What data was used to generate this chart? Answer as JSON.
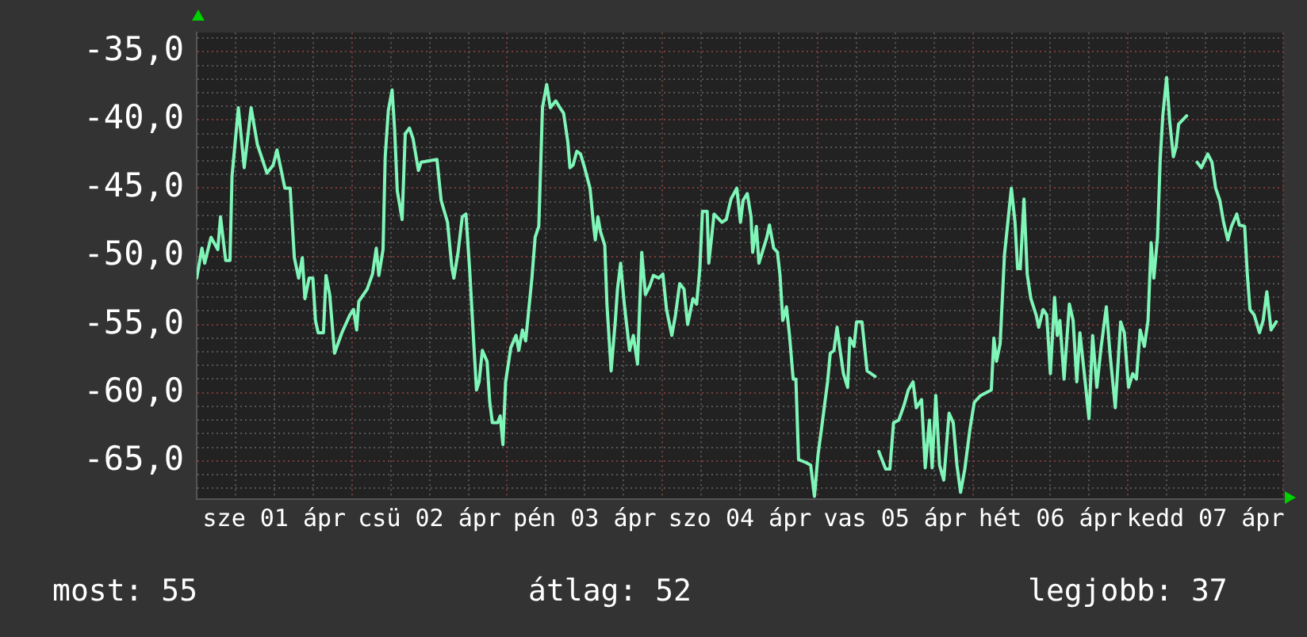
{
  "chart_data": {
    "type": "line",
    "grid": true,
    "legend": false,
    "marker": "none",
    "line_style": "solid",
    "xlim": [
      "--04-01T00:00",
      "--04-08T00:00"
    ],
    "xticks": [
      {
        "value": "--04-01T00:00",
        "label": null
      },
      {
        "value": "--04-01T06:00",
        "label": null
      },
      {
        "value": "--04-01T12:00",
        "label": "sze 01 ápr"
      },
      {
        "value": "--04-01T18:00",
        "label": null
      },
      {
        "value": "--04-02T00:00",
        "label": null
      },
      {
        "value": "--04-02T06:00",
        "label": null
      },
      {
        "value": "--04-02T12:00",
        "label": "csü 02 ápr"
      },
      {
        "value": "--04-02T18:00",
        "label": null
      },
      {
        "value": "--04-03T00:00",
        "label": null
      },
      {
        "value": "--04-03T06:00",
        "label": null
      },
      {
        "value": "--04-03T12:00",
        "label": "pén 03 ápr"
      },
      {
        "value": "--04-03T18:00",
        "label": null
      },
      {
        "value": "--04-04T00:00",
        "label": null
      },
      {
        "value": "--04-04T06:00",
        "label": null
      },
      {
        "value": "--04-04T12:00",
        "label": "szo 04 ápr"
      },
      {
        "value": "--04-04T18:00",
        "label": null
      },
      {
        "value": "--04-05T00:00",
        "label": null
      },
      {
        "value": "--04-05T06:00",
        "label": null
      },
      {
        "value": "--04-05T12:00",
        "label": "vas 05 ápr"
      },
      {
        "value": "--04-05T18:00",
        "label": null
      },
      {
        "value": "--04-06T00:00",
        "label": null
      },
      {
        "value": "--04-06T06:00",
        "label": null
      },
      {
        "value": "--04-06T12:00",
        "label": "hét 06 ápr"
      },
      {
        "value": "--04-06T18:00",
        "label": null
      },
      {
        "value": "--04-07T00:00",
        "label": null
      },
      {
        "value": "--04-07T06:00",
        "label": null
      },
      {
        "value": "--04-07T12:00",
        "label": "kedd 07 ápr"
      },
      {
        "value": "--04-07T18:00",
        "label": null
      },
      {
        "value": "--04-08T00:00",
        "label": null
      }
    ],
    "ylim": [
      -67.8,
      -33.6
    ],
    "yticks": [
      {
        "value": -67,
        "label": null
      },
      {
        "value": -66,
        "label": null
      },
      {
        "value": -65,
        "label": "-65,0"
      },
      {
        "value": -64,
        "label": null
      },
      {
        "value": -63,
        "label": null
      },
      {
        "value": -62,
        "label": null
      },
      {
        "value": -61,
        "label": null
      },
      {
        "value": -60,
        "label": "-60,0"
      },
      {
        "value": -59,
        "label": null
      },
      {
        "value": -58,
        "label": null
      },
      {
        "value": -57,
        "label": null
      },
      {
        "value": -56,
        "label": null
      },
      {
        "value": -55,
        "label": "-55,0"
      },
      {
        "value": -54,
        "label": null
      },
      {
        "value": -53,
        "label": null
      },
      {
        "value": -52,
        "label": null
      },
      {
        "value": -51,
        "label": null
      },
      {
        "value": -50,
        "label": "-50,0"
      },
      {
        "value": -49,
        "label": null
      },
      {
        "value": -48,
        "label": null
      },
      {
        "value": -47,
        "label": null
      },
      {
        "value": -46,
        "label": null
      },
      {
        "value": -45,
        "label": "-45,0"
      },
      {
        "value": -44,
        "label": null
      },
      {
        "value": -43,
        "label": null
      },
      {
        "value": -42,
        "label": null
      },
      {
        "value": -41,
        "label": null
      },
      {
        "value": -40,
        "label": "-40,0"
      },
      {
        "value": -39,
        "label": null
      },
      {
        "value": -38,
        "label": null
      },
      {
        "value": -37,
        "label": null
      },
      {
        "value": -36,
        "label": null
      },
      {
        "value": -35,
        "label": "-35,0"
      },
      {
        "value": -34,
        "label": null
      }
    ],
    "annotations": [
      "most: 55",
      "átlag: 52",
      "legjobb: 37"
    ],
    "series": [
      {
        "color": "#7ff5b8",
        "x": [
          "--04-01T00:00",
          "--04-01T00:49",
          "--04-01T01:14",
          "--04-01T02:13",
          "--04-01T03:16",
          "--04-01T03:41",
          "--04-01T04:29",
          "--04-01T05:09",
          "--04-01T05:28",
          "--04-01T06:27",
          "--04-01T07:21",
          "--04-01T08:25",
          "--04-01T09:23",
          "--04-01T10:52",
          "--04-01T11:50",
          "--04-01T12:25",
          "--04-01T13:38",
          "--04-01T14:27",
          "--04-01T15:06",
          "--04-01T15:46",
          "--04-01T16:20",
          "--04-01T16:44",
          "--04-01T17:23",
          "--04-01T17:58",
          "--04-01T18:22",
          "--04-01T18:47",
          "--04-01T19:36",
          "--04-01T20:00",
          "--04-01T20:34",
          "--04-01T21:19",
          "--04-01T22:27",
          "--04-01T23:41",
          "--04-02T00:15",
          "--04-02T00:44",
          "--04-02T01:04",
          "--04-02T02:22",
          "--04-02T03:11",
          "--04-02T03:46",
          "--04-02T04:10",
          "--04-02T04:49",
          "--04-02T05:09",
          "--04-02T05:38",
          "--04-02T06:13",
          "--04-02T06:37",
          "--04-02T07:01",
          "--04-02T07:46",
          "--04-02T08:15",
          "--04-02T08:54",
          "--04-02T09:28",
          "--04-02T10:17",
          "--04-02T10:42",
          "--04-02T13:09",
          "--04-02T13:48",
          "--04-02T14:47",
          "--04-02T15:26",
          "--04-02T15:46",
          "--04-02T16:25",
          "--04-02T17:04",
          "--04-02T17:38",
          "--04-02T18:12",
          "--04-02T18:52",
          "--04-02T19:16",
          "--04-02T19:40",
          "--04-02T20:10",
          "--04-02T20:54",
          "--04-02T21:19",
          "--04-02T21:43",
          "--04-02T22:32",
          "--04-02T22:56",
          "--04-02T23:21",
          "--04-02T23:46",
          "--04-03T00:34",
          "--04-03T01:23",
          "--04-03T01:48",
          "--04-03T02:22",
          "--04-03T02:52",
          "--04-03T03:50",
          "--04-03T04:20",
          "--04-03T04:54",
          "--04-03T05:28",
          "--04-03T06:07",
          "--04-03T06:41",
          "--04-03T07:31",
          "--04-03T08:10",
          "--04-03T08:44",
          "--04-03T09:23",
          "--04-03T09:43",
          "--04-03T10:12",
          "--04-03T10:46",
          "--04-03T11:21",
          "--04-03T11:59",
          "--04-03T12:49",
          "--04-03T13:23",
          "--04-03T13:38",
          "--04-03T14:02",
          "--04-03T14:27",
          "--04-03T15:06",
          "--04-03T15:26",
          "--04-03T16:05",
          "--04-03T16:44",
          "--04-03T17:04",
          "--04-03T17:33",
          "--04-03T18:07",
          "--04-03T18:56",
          "--04-03T19:31",
          "--04-03T20:10",
          "--04-03T20:49",
          "--04-03T21:23",
          "--04-03T22:02",
          "--04-03T22:37",
          "--04-03T23:26",
          "--04-04T00:05",
          "--04-04T00:39",
          "--04-04T01:28",
          "--04-04T02:02",
          "--04-04T02:41",
          "--04-04T03:21",
          "--04-04T03:55",
          "--04-04T04:44",
          "--04-04T05:18",
          "--04-04T05:48",
          "--04-04T06:12",
          "--04-04T06:56",
          "--04-04T07:11",
          "--04-04T08:00",
          "--04-04T09:13",
          "--04-04T09:53",
          "--04-04T10:37",
          "--04-04T11:31",
          "--04-04T12:05",
          "--04-04T12:29",
          "--04-04T13:08",
          "--04-04T13:43",
          "--04-04T13:58",
          "--04-04T14:32",
          "--04-04T14:56",
          "--04-04T16:10",
          "--04-04T16:34",
          "--04-04T17:13",
          "--04-04T17:48",
          "--04-04T18:12",
          "--04-04T18:37",
          "--04-04T19:11",
          "--04-04T19:40",
          "--04-04T20:14",
          "--04-04T20:39",
          "--04-04T21:04",
          "--04-04T22:07",
          "--04-04T22:56",
          "--04-04T23:31",
          "--04-05T00:05",
          "--04-05T00:34",
          "--04-05T01:33",
          "--04-05T01:58",
          "--04-05T02:32",
          "--04-05T03:01",
          "--04-05T03:26",
          "--04-05T04:00",
          "--04-05T04:39",
          "--04-05T04:59",
          "--04-05T05:38",
          "--04-05T06:02",
          "--04-05T06:52",
          "--04-05T07:40",
          "--04-05T08:54",
          "--04-05T09:12",
          "--04-05T09:28",
          "--04-05T10:32",
          "--04-05T11:11",
          "--04-05T11:45",
          "--04-05T12:34",
          "--04-05T13:23",
          "--04-05T14:02",
          "--04-05T14:46",
          "--04-05T15:16",
          "--04-05T16:05",
          "--04-05T16:39",
          "--04-05T17:18",
          "--04-05T17:43",
          "--04-05T18:17",
          "--04-05T18:52",
          "--04-05T19:31",
          "--04-05T20:20",
          "--04-05T20:59",
          "--04-05T21:33",
          "--04-05T22:07",
          "--04-05T22:46",
          "--04-05T23:35",
          "--04-06T00:14",
          "--04-06T01:13",
          "--04-06T02:52",
          "--04-06T03:16",
          "--04-06T03:40",
          "--04-06T04:14",
          "--04-06T04:54",
          "--04-06T05:58",
          "--04-06T06:32",
          "--04-06T06:56",
          "--04-06T07:21",
          "--04-06T07:55",
          "--04-06T08:25",
          "--04-06T08:59",
          "--04-06T09:48",
          "--04-06T10:12",
          "--04-06T10:52",
          "--04-06T11:26",
          "--04-06T12:00",
          "--04-06T12:39",
          "--04-06T13:04",
          "--04-06T13:28",
          "--04-06T14:07",
          "--04-06T14:56",
          "--04-06T15:31",
          "--04-06T16:05",
          "--04-06T16:34",
          "--04-06T17:23",
          "--04-06T17:58",
          "--04-06T18:32",
          "--04-06T19:11",
          "--04-06T19:50",
          "--04-06T20:39",
          "--04-06T21:13",
          "--04-06T22:02",
          "--04-06T22:52",
          "--04-06T23:26",
          "--04-07T00:05",
          "--04-07T00:44",
          "--04-07T01:18",
          "--04-07T01:53",
          "--04-07T02:32",
          "--04-07T03:06",
          "--04-07T03:35",
          "--04-07T04:00",
          "--04-07T04:34",
          "--04-07T04:59",
          "--04-07T05:23",
          "--04-07T05:58",
          "--04-07T06:27",
          "--04-07T07:01",
          "--04-07T07:26",
          "--04-07T07:50",
          "--04-07T09:04",
          "--04-07T10:00",
          "--04-07T10:41",
          "--04-07T11:21",
          "--04-07T12:20",
          "--04-07T12:59",
          "--04-07T13:33",
          "--04-07T14:12",
          "--04-07T14:47",
          "--04-07T15:26",
          "--04-07T16:00",
          "--04-07T16:49",
          "--04-07T17:13",
          "--04-07T18:02",
          "--04-07T18:27",
          "--04-07T18:52",
          "--04-07T19:31",
          "--04-07T20:20",
          "--04-07T20:54",
          "--04-07T21:28",
          "--04-07T22:07",
          "--04-07T22:56"
        ],
        "values": [
          -51.6,
          -49.4,
          -50.5,
          -48.6,
          -49.5,
          -47.1,
          -50.3,
          -50.3,
          -44.1,
          -39.1,
          -43.5,
          -39.1,
          -41.8,
          -43.9,
          -43.3,
          -42.2,
          -45.0,
          -45.0,
          -50.1,
          -51.6,
          -50.1,
          -53.1,
          -51.6,
          -51.6,
          -54.7,
          -55.6,
          -55.6,
          -51.4,
          -52.8,
          -57.1,
          -55.6,
          -54.3,
          -53.9,
          -55.4,
          -53.3,
          -52.4,
          -51.3,
          -49.4,
          -51.4,
          -49.5,
          -42.7,
          -39.3,
          -37.8,
          -40.8,
          -45.2,
          -47.3,
          -41.0,
          -40.6,
          -41.4,
          -43.7,
          -43.1,
          -42.9,
          -45.9,
          -47.5,
          -50.7,
          -51.6,
          -49.7,
          -47.1,
          -46.9,
          -50.9,
          -56.6,
          -59.8,
          -59.2,
          -56.9,
          -57.7,
          -60.7,
          -62.2,
          -62.2,
          -61.7,
          -63.8,
          -59.2,
          -56.7,
          -55.8,
          -56.9,
          -55.4,
          -56.2,
          -51.6,
          -48.6,
          -47.8,
          -39.1,
          -37.4,
          -39.1,
          -38.6,
          -39.1,
          -39.5,
          -41.6,
          -43.5,
          -43.3,
          -42.3,
          -42.5,
          -43.5,
          -45.0,
          -47.8,
          -48.8,
          -47.1,
          -48.2,
          -49.2,
          -53.5,
          -58.4,
          -54.7,
          -52.4,
          -50.5,
          -53.5,
          -56.9,
          -55.8,
          -57.9,
          -49.7,
          -52.8,
          -52.2,
          -51.4,
          -51.6,
          -51.3,
          -53.9,
          -55.8,
          -54.3,
          -52.0,
          -52.4,
          -55.0,
          -53.1,
          -53.5,
          -50.9,
          -46.7,
          -46.7,
          -50.5,
          -46.9,
          -47.5,
          -47.3,
          -45.8,
          -45.0,
          -47.5,
          -45.9,
          -45.4,
          -47.1,
          -49.7,
          -47.8,
          -50.5,
          -48.6,
          -47.7,
          -49.4,
          -49.7,
          -51.4,
          -54.7,
          -53.7,
          -55.8,
          -59.0,
          -59.0,
          -64.9,
          -65.1,
          -65.3,
          -67.6,
          -64.5,
          -62.8,
          -59.2,
          -57.1,
          -56.9,
          -55.2,
          -56.7,
          -58.6,
          -59.6,
          -56.0,
          -56.6,
          -54.8,
          -54.8,
          -58.4,
          -58.8,
          null,
          -64.3,
          -65.6,
          -65.6,
          -62.2,
          -62.0,
          -60.9,
          -59.8,
          -59.2,
          -61.1,
          -60.5,
          -65.5,
          -62.0,
          -65.5,
          -60.2,
          -65.3,
          -66.4,
          -61.5,
          -62.2,
          -65.3,
          -67.3,
          -65.6,
          -62.6,
          -60.7,
          -60.2,
          -59.8,
          -56.0,
          -57.7,
          -56.4,
          -49.9,
          -45.0,
          -47.5,
          -50.9,
          -50.9,
          -45.8,
          -51.3,
          -53.1,
          -54.3,
          -55.2,
          -53.9,
          -54.3,
          -58.6,
          -53.0,
          -55.8,
          -54.7,
          -59.0,
          -53.5,
          -54.7,
          -59.2,
          -55.6,
          -59.2,
          -61.9,
          -55.8,
          -59.6,
          -56.7,
          -53.7,
          -57.1,
          -61.1,
          -54.8,
          -55.6,
          -59.6,
          -58.6,
          -59.0,
          -55.4,
          -56.6,
          -54.7,
          -49.0,
          -51.6,
          -48.6,
          -42.9,
          -39.7,
          -36.9,
          -40.1,
          -42.7,
          -42.0,
          -40.3,
          -39.7,
          null,
          -43.1,
          -43.5,
          -42.5,
          -43.1,
          -45.0,
          -45.9,
          -47.5,
          -48.8,
          -47.8,
          -46.9,
          -47.7,
          -47.8,
          -51.3,
          -53.9,
          -54.3,
          -55.6,
          -54.7,
          -52.6,
          -55.4,
          -54.8
        ]
      }
    ]
  }
}
